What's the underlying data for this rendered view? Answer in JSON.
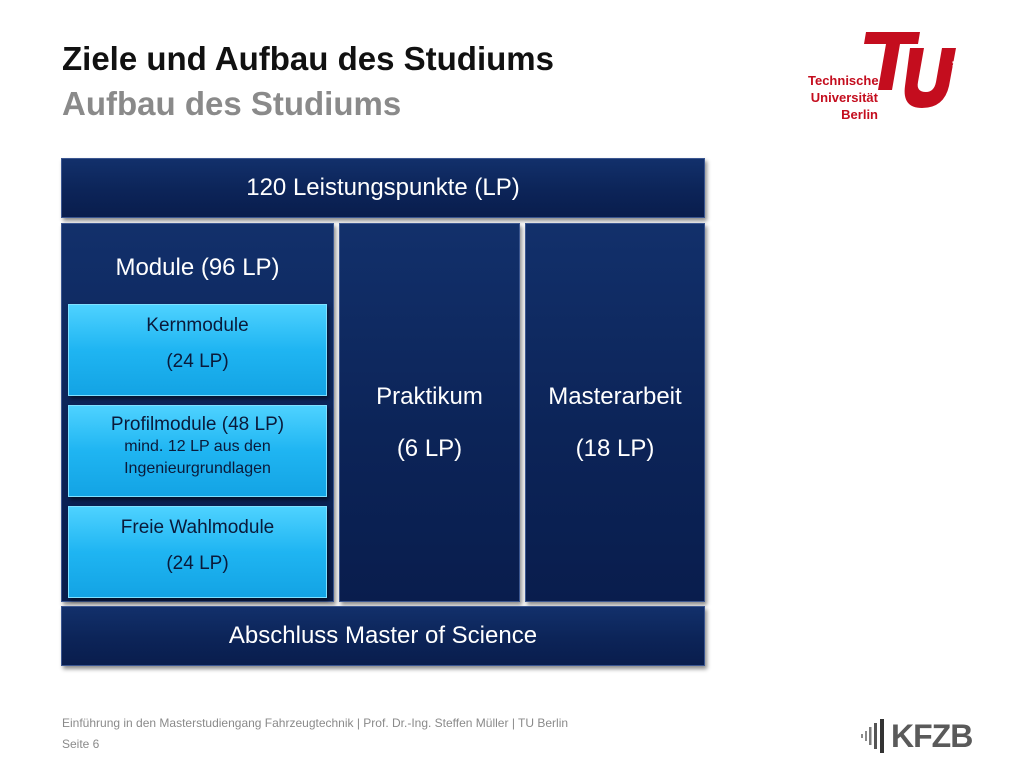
{
  "header": {
    "title": "Ziele und Aufbau des Studiums",
    "subtitle": "Aufbau des Studiums"
  },
  "logo": {
    "line1": "Technische",
    "line2": "Universität",
    "line3": "Berlin",
    "vertical": "berlin",
    "color": "#c40d1e"
  },
  "diagram": {
    "total": "120 Leistungspunkte (LP)",
    "modules_head": "Module (96 LP)",
    "kern_name": "Kernmodule",
    "kern_lp": "(24 LP)",
    "profil_name": "Profilmodule (48 LP)",
    "profil_note1": "mind. 12 LP aus den",
    "profil_note2": "Ingenieurgrundlagen",
    "frei_name": "Freie Wahlmodule",
    "frei_lp": "(24 LP)",
    "praktikum_name": "Praktikum",
    "praktikum_lp": "(6 LP)",
    "master_name": "Masterarbeit",
    "master_lp": "(18 LP)",
    "degree": "Abschluss Master of Science"
  },
  "footer": {
    "text": "Einführung in den Masterstudiengang Fahrzeugtechnik | Prof. Dr.-Ing. Steffen Müller | TU Berlin",
    "page": "Seite 6",
    "brand": "KFZB"
  }
}
